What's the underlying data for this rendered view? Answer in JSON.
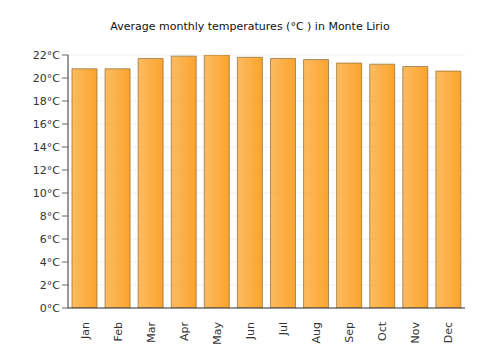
{
  "chart_data": {
    "type": "bar",
    "title": "Average monthly temperatures (°C ) in Monte Lirio",
    "categories": [
      "Jan",
      "Feb",
      "Mar",
      "Apr",
      "May",
      "Jun",
      "Jul",
      "Aug",
      "Sep",
      "Oct",
      "Nov",
      "Dec"
    ],
    "values": [
      20.8,
      20.8,
      21.7,
      21.9,
      22.0,
      21.8,
      21.7,
      21.6,
      21.3,
      21.2,
      21.0,
      20.6
    ],
    "color": "#fba42c",
    "ylim": [
      0,
      22
    ],
    "yticks": [
      {
        "value": 0,
        "label": "0°C"
      },
      {
        "value": 2,
        "label": "2°C"
      },
      {
        "value": 4,
        "label": "4°C"
      },
      {
        "value": 6,
        "label": "6°C"
      },
      {
        "value": 8,
        "label": "8°C"
      },
      {
        "value": 10,
        "label": "10°C"
      },
      {
        "value": 12,
        "label": "12°C"
      },
      {
        "value": 14,
        "label": "14°C"
      },
      {
        "value": 16,
        "label": "16°C"
      },
      {
        "value": 18,
        "label": "18°C"
      },
      {
        "value": 20,
        "label": "20°C"
      },
      {
        "value": 22,
        "label": "22°C"
      }
    ],
    "grid": true
  }
}
